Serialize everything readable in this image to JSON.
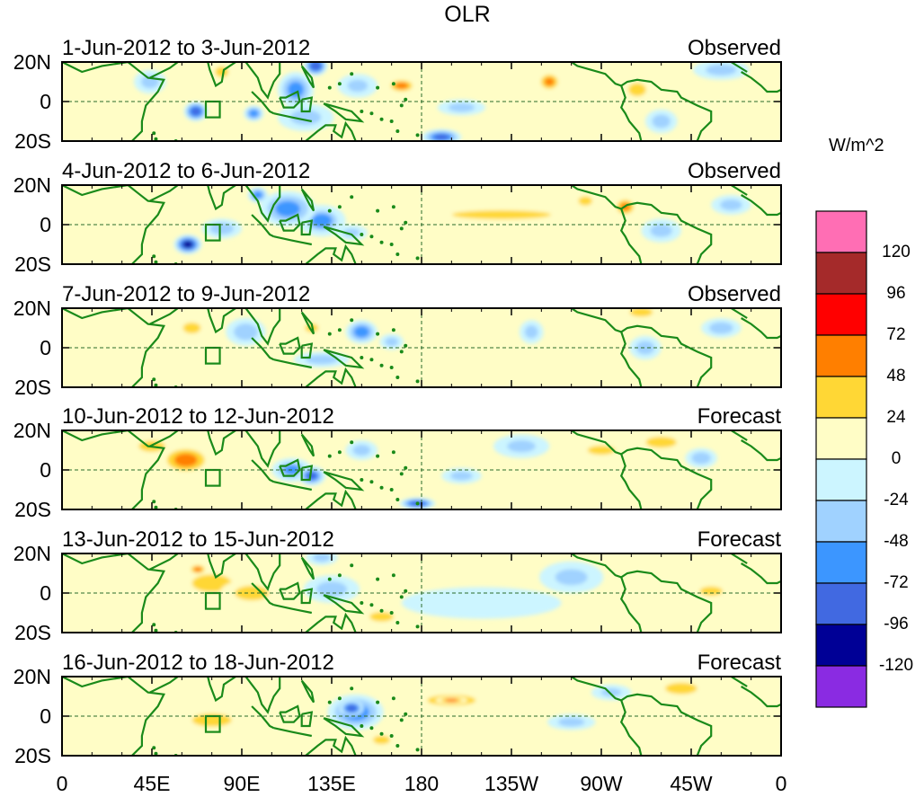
{
  "title": "OLR",
  "units": "W/m^2",
  "chart_data": {
    "type": "heatmap",
    "title": "OLR",
    "colorbar_label": "W/m^2",
    "lat_ticks": [
      "20N",
      "0",
      "20S"
    ],
    "lon_ticks": [
      "0",
      "45E",
      "90E",
      "135E",
      "180",
      "135W",
      "90W",
      "45W",
      "0"
    ],
    "lon_tick_values": [
      0,
      45,
      90,
      135,
      180,
      225,
      270,
      315,
      360
    ],
    "lat_range": [
      -20,
      20
    ],
    "lon_range": [
      0,
      360
    ],
    "colorbar_levels": [
      "120",
      "96",
      "72",
      "48",
      "24",
      "0",
      "-24",
      "-48",
      "-72",
      "-96",
      "-120"
    ],
    "colorbar_colors": [
      "#ff6eb4",
      "#a52a2a",
      "#ff0000",
      "#ff7f00",
      "#ffd735",
      "#fffdc6",
      "#ccf5ff",
      "#a0d2ff",
      "#3c96ff",
      "#4169e1",
      "#000096",
      "#8a2be2"
    ],
    "panels": [
      {
        "period": "1-Jun-2012 to 3-Jun-2012",
        "kind": "Observed",
        "blobs": [
          {
            "lon": 67,
            "lat": -5,
            "rx": 6,
            "ry": 5,
            "v": -90
          },
          {
            "lon": 96,
            "lat": -6,
            "rx": 5,
            "ry": 4,
            "v": -70
          },
          {
            "lon": 117,
            "lat": 6,
            "rx": 9,
            "ry": 9,
            "v": -65
          },
          {
            "lon": 127,
            "lat": 18,
            "rx": 6,
            "ry": 5,
            "v": -95
          },
          {
            "lon": 148,
            "lat": 8,
            "rx": 10,
            "ry": 6,
            "v": -35
          },
          {
            "lon": 122,
            "lat": -8,
            "rx": 14,
            "ry": 7,
            "v": -40
          },
          {
            "lon": 44,
            "lat": 10,
            "rx": 8,
            "ry": 6,
            "v": -30
          },
          {
            "lon": 80,
            "lat": 15,
            "rx": 6,
            "ry": 5,
            "v": 30
          },
          {
            "lon": 170,
            "lat": 8,
            "rx": 8,
            "ry": 4,
            "v": 55
          },
          {
            "lon": 244,
            "lat": 10,
            "rx": 6,
            "ry": 5,
            "v": 60
          },
          {
            "lon": 288,
            "lat": 6,
            "rx": 8,
            "ry": 6,
            "v": 30
          },
          {
            "lon": 200,
            "lat": -3,
            "rx": 12,
            "ry": 4,
            "v": -30
          },
          {
            "lon": 190,
            "lat": -18,
            "rx": 10,
            "ry": 4,
            "v": -80
          },
          {
            "lon": 300,
            "lat": -10,
            "rx": 8,
            "ry": 6,
            "v": -28
          },
          {
            "lon": 330,
            "lat": 16,
            "rx": 14,
            "ry": 5,
            "v": -30
          }
        ]
      },
      {
        "period": "4-Jun-2012 to 6-Jun-2012",
        "kind": "Observed",
        "blobs": [
          {
            "lon": 63,
            "lat": -10,
            "rx": 7,
            "ry": 5,
            "v": -100
          },
          {
            "lon": 80,
            "lat": -2,
            "rx": 10,
            "ry": 5,
            "v": -45
          },
          {
            "lon": 113,
            "lat": 8,
            "rx": 14,
            "ry": 9,
            "v": -65
          },
          {
            "lon": 130,
            "lat": 2,
            "rx": 12,
            "ry": 8,
            "v": -50
          },
          {
            "lon": 98,
            "lat": 15,
            "rx": 5,
            "ry": 4,
            "v": -70
          },
          {
            "lon": 145,
            "lat": -4,
            "rx": 8,
            "ry": 4,
            "v": -35
          },
          {
            "lon": 220,
            "lat": 5,
            "rx": 45,
            "ry": 4,
            "v": 30
          },
          {
            "lon": 282,
            "lat": 9,
            "rx": 6,
            "ry": 5,
            "v": 60
          },
          {
            "lon": 262,
            "lat": 12,
            "rx": 6,
            "ry": 4,
            "v": 28
          },
          {
            "lon": 300,
            "lat": -3,
            "rx": 10,
            "ry": 6,
            "v": -30
          },
          {
            "lon": 335,
            "lat": 10,
            "rx": 10,
            "ry": 5,
            "v": -30
          }
        ]
      },
      {
        "period": "7-Jun-2012 to 9-Jun-2012",
        "kind": "Observed",
        "blobs": [
          {
            "lon": 65,
            "lat": 10,
            "rx": 8,
            "ry": 5,
            "v": 30
          },
          {
            "lon": 92,
            "lat": 8,
            "rx": 10,
            "ry": 7,
            "v": -45
          },
          {
            "lon": 150,
            "lat": 8,
            "rx": 8,
            "ry": 6,
            "v": -70
          },
          {
            "lon": 165,
            "lat": 3,
            "rx": 6,
            "ry": 4,
            "v": -30
          },
          {
            "lon": 125,
            "lat": 10,
            "rx": 6,
            "ry": 4,
            "v": 30
          },
          {
            "lon": 130,
            "lat": -6,
            "rx": 14,
            "ry": 4,
            "v": -28
          },
          {
            "lon": 235,
            "lat": 8,
            "rx": 6,
            "ry": 6,
            "v": -30
          },
          {
            "lon": 290,
            "lat": 18,
            "rx": 10,
            "ry": 4,
            "v": 28
          },
          {
            "lon": 292,
            "lat": 0,
            "rx": 8,
            "ry": 6,
            "v": -28
          },
          {
            "lon": 330,
            "lat": 10,
            "rx": 10,
            "ry": 5,
            "v": -26
          }
        ]
      },
      {
        "period": "10-Jun-2012 to 12-Jun-2012",
        "kind": "Forecast",
        "blobs": [
          {
            "lon": 62,
            "lat": 5,
            "rx": 14,
            "ry": 8,
            "v": 55
          },
          {
            "lon": 45,
            "lat": 12,
            "rx": 12,
            "ry": 5,
            "v": 30
          },
          {
            "lon": 115,
            "lat": 0,
            "rx": 10,
            "ry": 6,
            "v": -55
          },
          {
            "lon": 125,
            "lat": -3,
            "rx": 7,
            "ry": 5,
            "v": -75
          },
          {
            "lon": 150,
            "lat": 10,
            "rx": 8,
            "ry": 5,
            "v": -30
          },
          {
            "lon": 178,
            "lat": -17,
            "rx": 9,
            "ry": 3,
            "v": -90
          },
          {
            "lon": 230,
            "lat": 12,
            "rx": 14,
            "ry": 6,
            "v": -35
          },
          {
            "lon": 270,
            "lat": 10,
            "rx": 12,
            "ry": 4,
            "v": 28
          },
          {
            "lon": 300,
            "lat": 14,
            "rx": 14,
            "ry": 5,
            "v": 30
          },
          {
            "lon": 320,
            "lat": 6,
            "rx": 8,
            "ry": 5,
            "v": -45
          },
          {
            "lon": 200,
            "lat": -3,
            "rx": 10,
            "ry": 4,
            "v": -30
          }
        ]
      },
      {
        "period": "13-Jun-2012 to 15-Jun-2012",
        "kind": "Forecast",
        "blobs": [
          {
            "lon": 75,
            "lat": 5,
            "rx": 18,
            "ry": 8,
            "v": 30
          },
          {
            "lon": 68,
            "lat": 12,
            "rx": 5,
            "ry": 3,
            "v": 55
          },
          {
            "lon": 95,
            "lat": 0,
            "rx": 16,
            "ry": 7,
            "v": 32
          },
          {
            "lon": 135,
            "lat": 2,
            "rx": 14,
            "ry": 7,
            "v": -40
          },
          {
            "lon": 160,
            "lat": -12,
            "rx": 10,
            "ry": 4,
            "v": 45
          },
          {
            "lon": 130,
            "lat": 18,
            "rx": 8,
            "ry": 4,
            "v": -30
          },
          {
            "lon": 255,
            "lat": 8,
            "rx": 16,
            "ry": 8,
            "v": -35
          },
          {
            "lon": 325,
            "lat": 1,
            "rx": 10,
            "ry": 4,
            "v": 28
          },
          {
            "lon": 210,
            "lat": -5,
            "rx": 40,
            "ry": 8,
            "v": -22
          }
        ]
      },
      {
        "period": "16-Jun-2012 to 18-Jun-2012",
        "kind": "Forecast",
        "blobs": [
          {
            "lon": 75,
            "lat": -2,
            "rx": 18,
            "ry": 6,
            "v": 30
          },
          {
            "lon": 147,
            "lat": 2,
            "rx": 14,
            "ry": 9,
            "v": -70
          },
          {
            "lon": 145,
            "lat": 4,
            "rx": 6,
            "ry": 4,
            "v": -95
          },
          {
            "lon": 195,
            "lat": 8,
            "rx": 22,
            "ry": 5,
            "v": 30
          },
          {
            "lon": 195,
            "lat": 8,
            "rx": 8,
            "ry": 2,
            "v": 55
          },
          {
            "lon": 275,
            "lat": 12,
            "rx": 10,
            "ry": 4,
            "v": -35
          },
          {
            "lon": 310,
            "lat": 14,
            "rx": 14,
            "ry": 5,
            "v": 28
          },
          {
            "lon": 255,
            "lat": -3,
            "rx": 12,
            "ry": 4,
            "v": -30
          },
          {
            "lon": 160,
            "lat": -12,
            "rx": 8,
            "ry": 4,
            "v": 32
          }
        ]
      }
    ]
  }
}
